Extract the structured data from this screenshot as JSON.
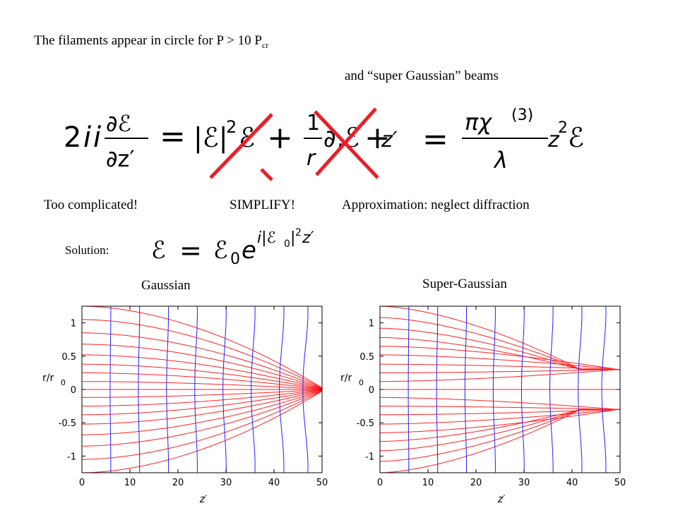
{
  "slide": {
    "title_main": "The filaments appear in circle for P > 10 P",
    "title_sub": "cr",
    "subtitle": "and “super Gaussian” beams",
    "too_complicated": "Too complicated!",
    "simplify": "SIMPLIFY!",
    "approximation": "Approximation: neglect diffraction",
    "solution_label": "Solution:",
    "label_gaussian": "Gaussian",
    "label_super_gaussian": "Super-Gaussian"
  },
  "colors": {
    "cross": "#e8202a",
    "ray": "#ff2020",
    "front": "#2020ff",
    "axes": "#000000"
  },
  "equation": {
    "coef": "2",
    "i": "i",
    "i2": "i",
    "num": "∂ℰ",
    "den": "∂z′",
    "eq1": "=",
    "abs_l": "|ℰ|",
    "pow2": "2",
    "E1": "ℰ",
    "plus1": "+",
    "one": "1",
    "r": "r",
    "partial_r": "∂",
    "r_sub": "r",
    "E2": "ℰ",
    "plus2": "+",
    "zp": "z′",
    "eq2": "=",
    "pi_chi": "πχ",
    "chi3": "(3)",
    "lambda": "λ",
    "z2": "z",
    "exp2": "2",
    "E3": "ℰ"
  },
  "solution_eq": {
    "lhs": "ℰ",
    "eq": "=",
    "E0": "ℰ",
    "sub0": "0",
    "e": "e",
    "exponent": "i|ℰ",
    "exp_sub0": "0",
    "exp_rest": "|",
    "exp_pow2": "2",
    "exp_z": "z′"
  },
  "chart_data": [
    {
      "type": "line",
      "title": "Gaussian",
      "xlabel": "z′",
      "ylabel": "r/r",
      "ylabel_sub": "0",
      "xlim": [
        0,
        50
      ],
      "ylim": [
        -1.25,
        1.25
      ],
      "xticks": [
        0,
        10,
        20,
        30,
        40,
        50
      ],
      "xtick_labels": [
        "0",
        "10",
        "20",
        "30",
        "40",
        "50"
      ],
      "yticks": [
        1,
        0.5,
        0,
        -0.5,
        -1
      ],
      "ytick_labels": [
        "1",
        "0.5",
        "0",
        "-0.5",
        "-1"
      ],
      "ray_series": {
        "kind": "gaussian",
        "r0": [
          1.25,
          1.05,
          0.85,
          0.68,
          0.52,
          0.38,
          0.25,
          0.12,
          0.0,
          -0.12,
          -0.25,
          -0.38,
          -0.52,
          -0.68,
          -0.85,
          -1.05,
          -1.25
        ]
      },
      "front_series": {
        "z0": [
          6,
          12,
          18,
          24,
          30,
          36,
          42,
          47
        ],
        "curvature": 0.06
      }
    },
    {
      "type": "line",
      "title": "Super-Gaussian",
      "xlabel": "z′",
      "ylabel": "r/r",
      "ylabel_sub": "0",
      "xlim": [
        0,
        50
      ],
      "ylim": [
        -1.25,
        1.25
      ],
      "xticks": [
        0,
        10,
        20,
        30,
        40,
        50
      ],
      "xtick_labels": [
        "0",
        "10",
        "20",
        "30",
        "40",
        "50"
      ],
      "yticks": [
        1,
        0.5,
        0,
        -0.5,
        -1
      ],
      "ytick_labels": [
        "1",
        "0.5",
        "0",
        "-0.5",
        "-1"
      ],
      "ray_series": {
        "kind": "super-gaussian",
        "r0": [
          1.25,
          1.08,
          0.92,
          0.78,
          0.65,
          0.52,
          0.38,
          0.25,
          0.12,
          0.0,
          -0.12,
          -0.25,
          -0.38,
          -0.52,
          -0.65,
          -0.78,
          -0.92,
          -1.08,
          -1.25
        ]
      },
      "front_series": {
        "z0": [
          6,
          12,
          18,
          24,
          30,
          36,
          42,
          47
        ],
        "curvature": 0.05
      }
    }
  ]
}
